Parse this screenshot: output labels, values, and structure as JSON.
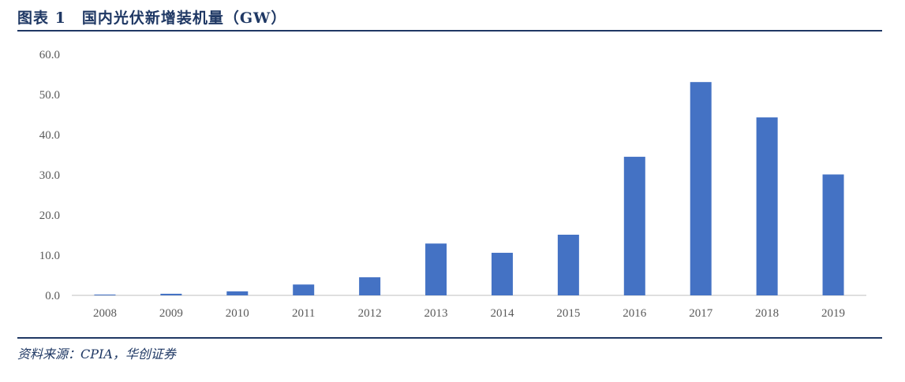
{
  "figure": {
    "title": "图表 1　国内光伏新增装机量（GW）",
    "source": "资料来源：CPIA，华创证券"
  },
  "colors": {
    "bar": "#4472c4",
    "axis": "#bfbfbf",
    "tick_text": "#595959",
    "title": "#1f3864"
  },
  "chart_data": {
    "type": "bar",
    "categories": [
      "2008",
      "2009",
      "2010",
      "2011",
      "2012",
      "2013",
      "2014",
      "2015",
      "2016",
      "2017",
      "2018",
      "2019"
    ],
    "values": [
      0.2,
      0.4,
      1.0,
      2.7,
      4.5,
      12.9,
      10.6,
      15.1,
      34.5,
      53.1,
      44.3,
      30.1
    ],
    "title": "",
    "xlabel": "",
    "ylabel": "",
    "ylim": [
      0,
      60
    ],
    "yticks": [
      "0.0",
      "10.0",
      "20.0",
      "30.0",
      "40.0",
      "50.0",
      "60.0"
    ],
    "grid": false,
    "legend": "none"
  }
}
